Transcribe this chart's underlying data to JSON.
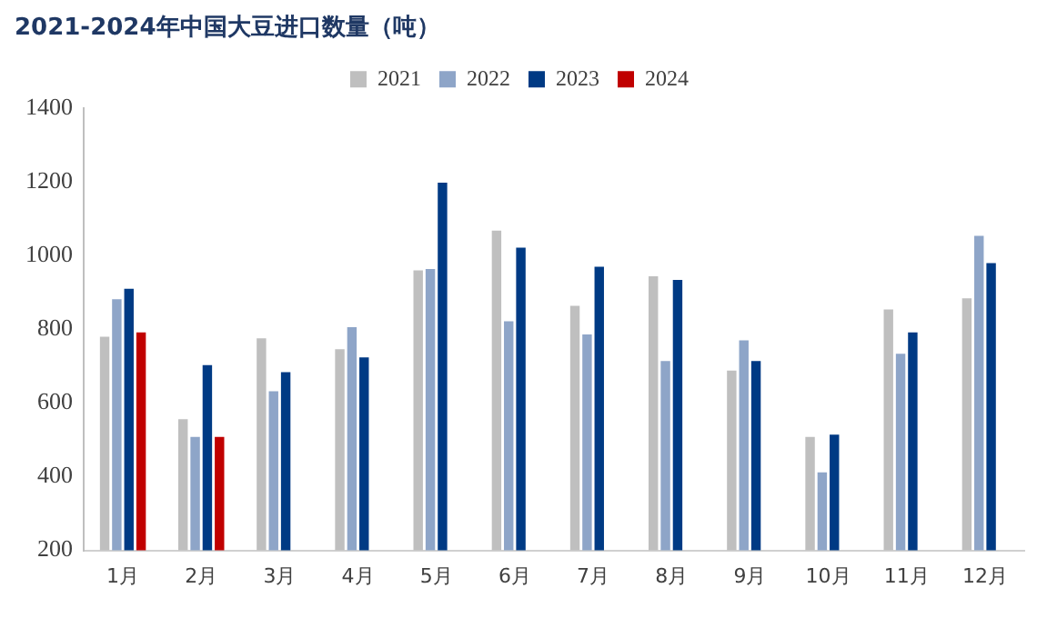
{
  "chart_data": {
    "type": "bar",
    "title": "2021-2024年中国大豆进口数量（吨）",
    "categories": [
      "1月",
      "2月",
      "3月",
      "4月",
      "5月",
      "6月",
      "7月",
      "8月",
      "9月",
      "10月",
      "11月",
      "12月"
    ],
    "series": [
      {
        "name": "2021",
        "color": "#bfbfbf",
        "values": [
          780,
          556,
          776,
          746,
          960,
          1068,
          864,
          944,
          688,
          508,
          854,
          884
        ]
      },
      {
        "name": "2022",
        "color": "#8ea5c8",
        "values": [
          882,
          508,
          632,
          806,
          964,
          822,
          786,
          714,
          770,
          412,
          734,
          1054
        ]
      },
      {
        "name": "2023",
        "color": "#003a84",
        "values": [
          910,
          703,
          684,
          724,
          1198,
          1022,
          970,
          934,
          714,
          514,
          792,
          980
        ]
      },
      {
        "name": "2024",
        "color": "#c00000",
        "values": [
          792,
          508,
          null,
          null,
          null,
          null,
          null,
          null,
          null,
          null,
          null,
          null
        ]
      }
    ],
    "ylim": [
      200,
      1400
    ],
    "yticks": [
      200,
      400,
      600,
      800,
      1000,
      1200,
      1400
    ],
    "grid": false,
    "legend": "top"
  }
}
